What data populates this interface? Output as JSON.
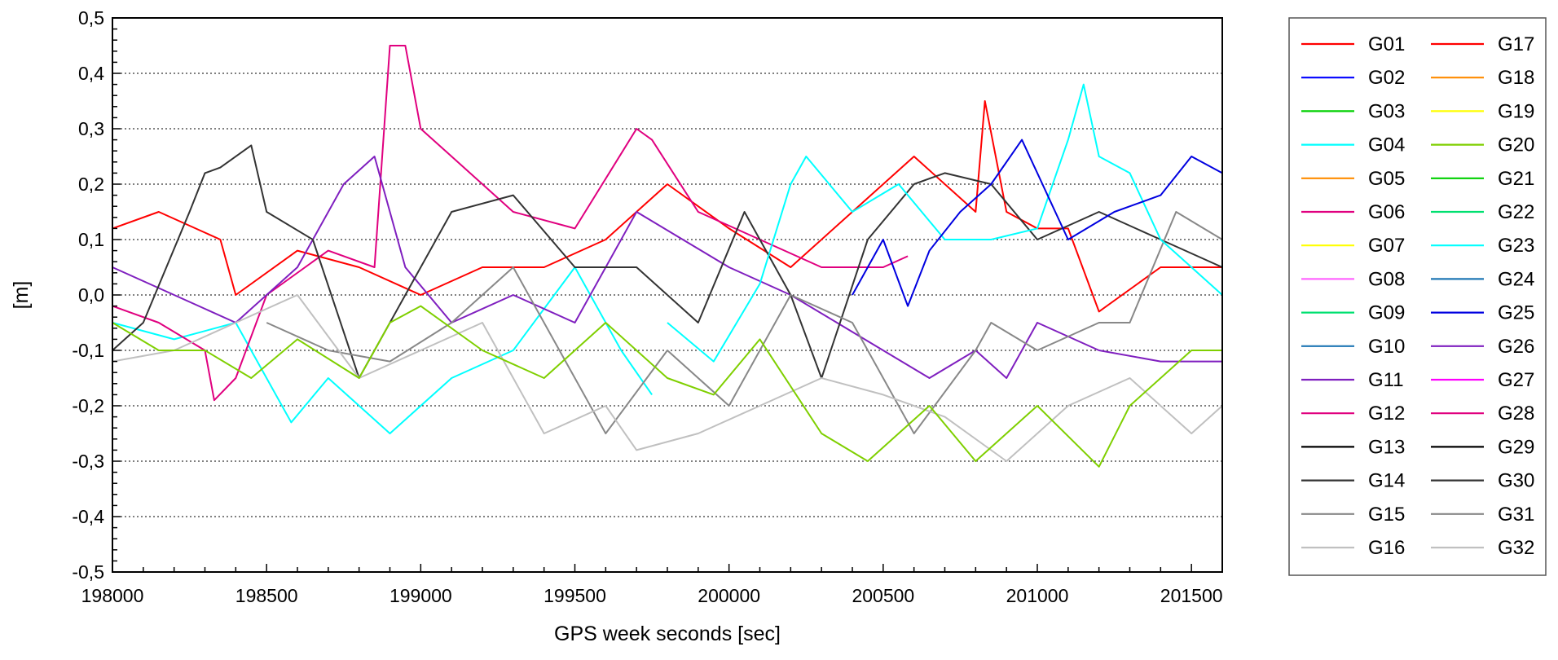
{
  "chart_data": {
    "type": "line",
    "xlabel": "GPS week seconds [sec]",
    "ylabel": "[m]",
    "xlim": [
      198000,
      201600
    ],
    "ylim": [
      -0.5,
      0.5
    ],
    "x_ticks": [
      198000,
      198500,
      199000,
      199500,
      200000,
      200500,
      201000,
      201500
    ],
    "x_tick_labels": [
      "198000",
      "198500",
      "199000",
      "199500",
      "200000",
      "200500",
      "201000",
      "201500"
    ],
    "y_ticks": [
      0.5,
      0.4,
      0.3,
      0.2,
      0.1,
      0.0,
      -0.1,
      -0.2,
      -0.3,
      -0.4,
      -0.5
    ],
    "y_tick_labels": [
      "0,5",
      "0,4",
      "0,3",
      "0,2",
      "0,1",
      "0,0",
      "-0,1",
      "-0,2",
      "-0,3",
      "-0,4",
      "-0,5"
    ],
    "grid": "horizontal dotted",
    "legend_position": "right",
    "series": [
      {
        "name": "G01",
        "color": "#ff0000",
        "x": [
          198000,
          198150,
          198350,
          198400,
          198600,
          198800,
          199000,
          199200,
          199400,
          199600,
          199800,
          200000,
          200200,
          200400,
          200600,
          200800,
          200830,
          200900,
          201000,
          201100,
          201200,
          201400,
          201600
        ],
        "y": [
          0.12,
          0.15,
          0.1,
          0.0,
          0.08,
          0.05,
          0.0,
          0.05,
          0.05,
          0.1,
          0.2,
          0.12,
          0.05,
          0.15,
          0.25,
          0.15,
          0.35,
          0.15,
          0.12,
          0.12,
          -0.03,
          0.05,
          0.05
        ]
      },
      {
        "name": "G02",
        "color": "#0000ff",
        "x": [],
        "y": []
      },
      {
        "name": "G03",
        "color": "#00d000",
        "x": [],
        "y": []
      },
      {
        "name": "G04",
        "color": "#00ffff",
        "x": [
          198000,
          198200,
          198400,
          198580,
          198700,
          198800,
          198900,
          199100,
          199300,
          199500,
          199650,
          199750
        ],
        "y": [
          -0.05,
          -0.08,
          -0.05,
          -0.23,
          -0.15,
          -0.2,
          -0.25,
          -0.15,
          -0.1,
          0.05,
          -0.1,
          -0.18
        ]
      },
      {
        "name": "G05",
        "color": "#ff8c00",
        "x": [],
        "y": []
      },
      {
        "name": "G06",
        "color": "#e0007f",
        "x": [
          198000,
          198150,
          198300,
          198330,
          198400,
          198500,
          198700,
          198850,
          198900,
          198950,
          199000,
          199100,
          199300,
          199500,
          199700,
          199750,
          199900,
          200100,
          200300,
          200500,
          200580
        ],
        "y": [
          -0.02,
          -0.05,
          -0.1,
          -0.19,
          -0.15,
          0.0,
          0.08,
          0.05,
          0.45,
          0.45,
          0.3,
          0.25,
          0.15,
          0.12,
          0.3,
          0.28,
          0.15,
          0.1,
          0.05,
          0.05,
          0.07
        ]
      },
      {
        "name": "G07",
        "color": "#ffff00",
        "x": [],
        "y": []
      },
      {
        "name": "G08",
        "color": "#ff66ff",
        "x": [],
        "y": []
      },
      {
        "name": "G09",
        "color": "#00e070",
        "x": [],
        "y": []
      },
      {
        "name": "G10",
        "color": "#1f77b4",
        "x": [],
        "y": []
      },
      {
        "name": "G11",
        "color": "#7f1fbf",
        "x": [
          198000,
          198200,
          198400,
          198600,
          198750,
          198850,
          198950,
          199100,
          199300,
          199500,
          199700,
          199850,
          200000,
          200200,
          200350,
          200500,
          200650,
          200800,
          200900,
          201000,
          201200,
          201400,
          201600
        ],
        "y": [
          0.05,
          0.0,
          -0.05,
          0.05,
          0.2,
          0.25,
          0.05,
          -0.05,
          0.0,
          -0.05,
          0.15,
          0.1,
          0.05,
          0.0,
          -0.05,
          -0.1,
          -0.15,
          -0.1,
          -0.15,
          -0.05,
          -0.1,
          -0.12,
          -0.12
        ]
      },
      {
        "name": "G12",
        "color": "#e0007f",
        "x": [],
        "y": []
      },
      {
        "name": "G13",
        "color": "#000000",
        "x": [],
        "y": []
      },
      {
        "name": "G14",
        "color": "#333333",
        "x": [
          198000,
          198100,
          198250,
          198300,
          198350,
          198450,
          198500,
          198650,
          198800,
          198950,
          199100,
          199300,
          199500,
          199700,
          199900,
          200050,
          200200,
          200300,
          200450,
          200600,
          200700,
          200850,
          201000,
          201200,
          201400,
          201600
        ],
        "y": [
          -0.1,
          -0.05,
          0.15,
          0.22,
          0.23,
          0.27,
          0.15,
          0.1,
          -0.15,
          0.0,
          0.15,
          0.18,
          0.05,
          0.05,
          -0.05,
          0.15,
          0.0,
          -0.15,
          0.1,
          0.2,
          0.22,
          0.2,
          0.1,
          0.15,
          0.1,
          0.05
        ]
      },
      {
        "name": "G15",
        "color": "#888888",
        "x": [
          198500,
          198700,
          198900,
          199100,
          199300,
          199500,
          199600,
          199800,
          200000,
          200200,
          200400,
          200600,
          200800,
          200850,
          201000,
          201200,
          201300,
          201450,
          201600
        ],
        "y": [
          -0.05,
          -0.1,
          -0.12,
          -0.05,
          0.05,
          -0.15,
          -0.25,
          -0.1,
          -0.2,
          0.0,
          -0.05,
          -0.25,
          -0.1,
          -0.05,
          -0.1,
          -0.05,
          -0.05,
          0.15,
          0.1
        ]
      },
      {
        "name": "G16",
        "color": "#c0c0c0",
        "x": [
          198000,
          198200,
          198400,
          198600,
          198800,
          199000,
          199200,
          199400,
          199600,
          199700,
          199900,
          200100,
          200300,
          200500,
          200700,
          200900,
          201100,
          201300,
          201500,
          201600
        ],
        "y": [
          -0.12,
          -0.1,
          -0.05,
          0.0,
          -0.15,
          -0.1,
          -0.05,
          -0.25,
          -0.2,
          -0.28,
          -0.25,
          -0.2,
          -0.15,
          -0.18,
          -0.22,
          -0.3,
          -0.2,
          -0.15,
          -0.25,
          -0.2
        ]
      },
      {
        "name": "G17",
        "color": "#ff0000",
        "x": [],
        "y": []
      },
      {
        "name": "G18",
        "color": "#ff8c00",
        "x": [],
        "y": []
      },
      {
        "name": "G19",
        "color": "#ffff00",
        "x": [],
        "y": []
      },
      {
        "name": "G20",
        "color": "#7fcf00",
        "x": [
          198000,
          198150,
          198300,
          198450,
          198600,
          198800,
          198900,
          199000,
          199200,
          199400,
          199600,
          199800,
          199950,
          200100,
          200300,
          200450,
          200650,
          200800,
          201000,
          201200,
          201300,
          201500,
          201600
        ],
        "y": [
          -0.05,
          -0.1,
          -0.1,
          -0.15,
          -0.08,
          -0.15,
          -0.05,
          -0.02,
          -0.1,
          -0.15,
          -0.05,
          -0.15,
          -0.18,
          -0.08,
          -0.25,
          -0.3,
          -0.2,
          -0.3,
          -0.2,
          -0.31,
          -0.2,
          -0.1,
          -0.1
        ]
      },
      {
        "name": "G21",
        "color": "#00d000",
        "x": [],
        "y": []
      },
      {
        "name": "G22",
        "color": "#00e070",
        "x": [],
        "y": []
      },
      {
        "name": "G23",
        "color": "#00ffff",
        "x": [
          199800,
          199950,
          200100,
          200200,
          200250,
          200400,
          200550,
          200700,
          200850,
          201000,
          201100,
          201150,
          201200,
          201300,
          201400,
          201500,
          201600
        ],
        "y": [
          -0.05,
          -0.12,
          0.02,
          0.2,
          0.25,
          0.15,
          0.2,
          0.1,
          0.1,
          0.12,
          0.28,
          0.38,
          0.25,
          0.22,
          0.1,
          0.05,
          0.0
        ]
      },
      {
        "name": "G24",
        "color": "#1f77b4",
        "x": [],
        "y": []
      },
      {
        "name": "G25",
        "color": "#0000e0",
        "x": [
          200400,
          200500,
          200580,
          200650,
          200750,
          200850,
          200950,
          201100,
          201250,
          201400,
          201500,
          201600
        ],
        "y": [
          0.0,
          0.1,
          -0.02,
          0.08,
          0.15,
          0.2,
          0.28,
          0.1,
          0.15,
          0.18,
          0.25,
          0.22
        ]
      },
      {
        "name": "G26",
        "color": "#7f1fbf",
        "x": [],
        "y": []
      },
      {
        "name": "G27",
        "color": "#ff00ff",
        "x": [],
        "y": []
      },
      {
        "name": "G28",
        "color": "#e0007f",
        "x": [],
        "y": []
      },
      {
        "name": "G29",
        "color": "#000000",
        "x": [],
        "y": []
      },
      {
        "name": "G30",
        "color": "#333333",
        "x": [],
        "y": []
      },
      {
        "name": "G31",
        "color": "#888888",
        "x": [],
        "y": []
      },
      {
        "name": "G32",
        "color": "#c0c0c0",
        "x": [],
        "y": []
      }
    ]
  }
}
